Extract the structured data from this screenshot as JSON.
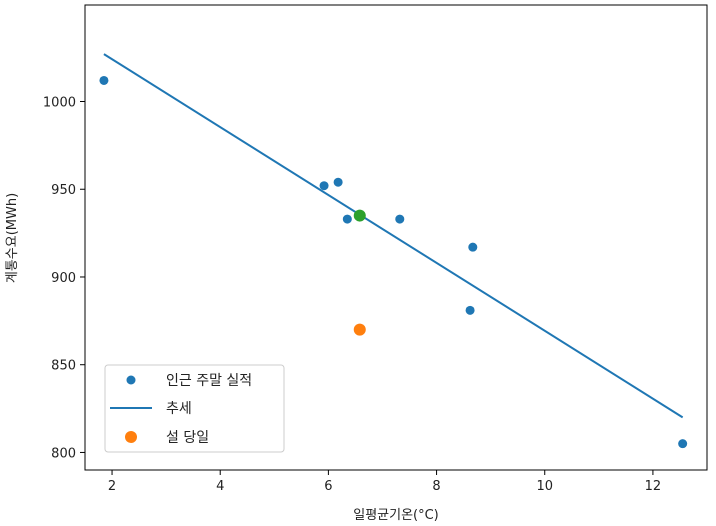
{
  "chart_data": {
    "type": "scatter",
    "xlabel": "일평균기온(°C)",
    "ylabel": "계통수요(MWh)",
    "xlim": [
      1.5,
      13.0
    ],
    "ylim": [
      790,
      1055
    ],
    "x_ticks": [
      2,
      4,
      6,
      8,
      10,
      12
    ],
    "y_ticks": [
      800,
      850,
      900,
      950,
      1000
    ],
    "grid": false,
    "legend_position": "lower-left",
    "series": [
      {
        "name": "인근 주말 실적",
        "kind": "scatter",
        "color": "#1f77b4",
        "points": [
          {
            "x": 1.85,
            "y": 1012
          },
          {
            "x": 5.92,
            "y": 952
          },
          {
            "x": 6.18,
            "y": 954
          },
          {
            "x": 6.35,
            "y": 933
          },
          {
            "x": 7.32,
            "y": 933
          },
          {
            "x": 8.62,
            "y": 881
          },
          {
            "x": 8.67,
            "y": 917
          },
          {
            "x": 12.55,
            "y": 805
          }
        ]
      },
      {
        "name": "추세",
        "kind": "line",
        "color": "#1f77b4",
        "points": [
          {
            "x": 1.85,
            "y": 1027
          },
          {
            "x": 12.55,
            "y": 820
          }
        ]
      },
      {
        "name": "설 당일",
        "kind": "scatter",
        "color": "#ff7f0e",
        "points": [
          {
            "x": 6.58,
            "y": 870
          }
        ]
      },
      {
        "kind": "scatter",
        "color": "#2ca02c",
        "points": [
          {
            "x": 6.58,
            "y": 935
          }
        ]
      }
    ]
  }
}
